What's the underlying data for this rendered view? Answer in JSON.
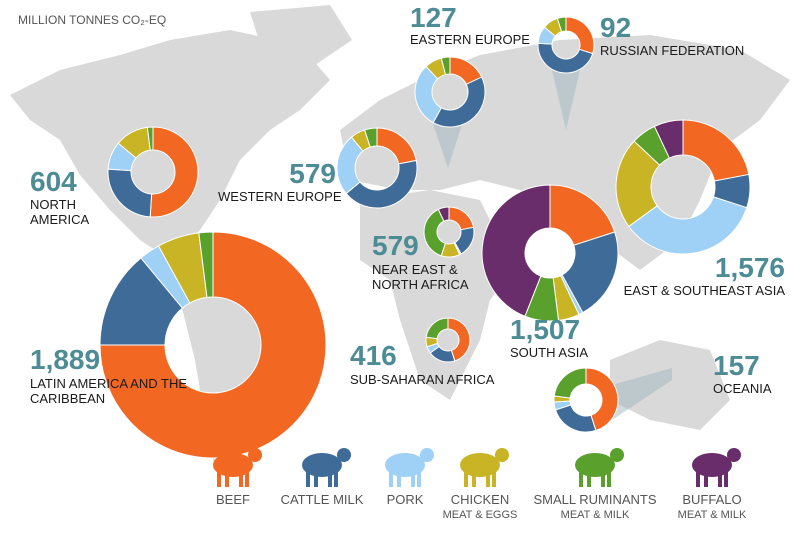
{
  "chart_data": {
    "type": "donut",
    "title": "MILLION TONNES CO₂-EQ",
    "categories": [
      "NORTH AMERICA",
      "LATIN AMERICA AND THE CARIBBEAN",
      "WESTERN EUROPE",
      "EASTERN EUROPE",
      "RUSSIAN FEDERATION",
      "NEAR EAST & NORTH AFRICA",
      "SUB-SAHARAN AFRICA",
      "SOUTH ASIA",
      "EAST & SOUTHEAST ASIA",
      "OCEANIA"
    ],
    "values": [
      604,
      1889,
      579,
      127,
      92,
      579,
      416,
      1507,
      1576,
      157
    ],
    "value_labels": [
      "604",
      "1,889",
      "579",
      "127",
      "92",
      "579",
      "416",
      "1,507",
      "1,576",
      "157"
    ],
    "series": [
      {
        "name": "BEEF",
        "color": "#f26722",
        "values": [
          51,
          75,
          22,
          18,
          30,
          22,
          45,
          20,
          22,
          45
        ]
      },
      {
        "name": "CATTLE MILK",
        "color": "#3f6b99",
        "values": [
          25,
          14,
          42,
          40,
          46,
          20,
          20,
          22,
          8,
          25
        ]
      },
      {
        "name": "PORK",
        "color": "#9fd0f5",
        "values": [
          10,
          3,
          25,
          30,
          10,
          1,
          5,
          1,
          35,
          4
        ]
      },
      {
        "name": "CHICKEN",
        "detail": "MEAT & EGGS",
        "color": "#c8b424",
        "values": [
          12,
          6,
          6,
          8,
          9,
          12,
          7,
          5,
          22,
          3
        ]
      },
      {
        "name": "SMALL RUMINANTS",
        "detail": "MEAT & MILK",
        "color": "#5aa02c",
        "values": [
          2,
          2,
          5,
          4,
          5,
          38,
          23,
          8,
          6,
          23
        ]
      },
      {
        "name": "BUFFALO",
        "detail": "MEAT & MILK",
        "color": "#6a2d6b",
        "values": [
          0,
          0,
          0,
          0,
          0,
          7,
          0,
          44,
          7,
          0
        ]
      }
    ]
  }
}
